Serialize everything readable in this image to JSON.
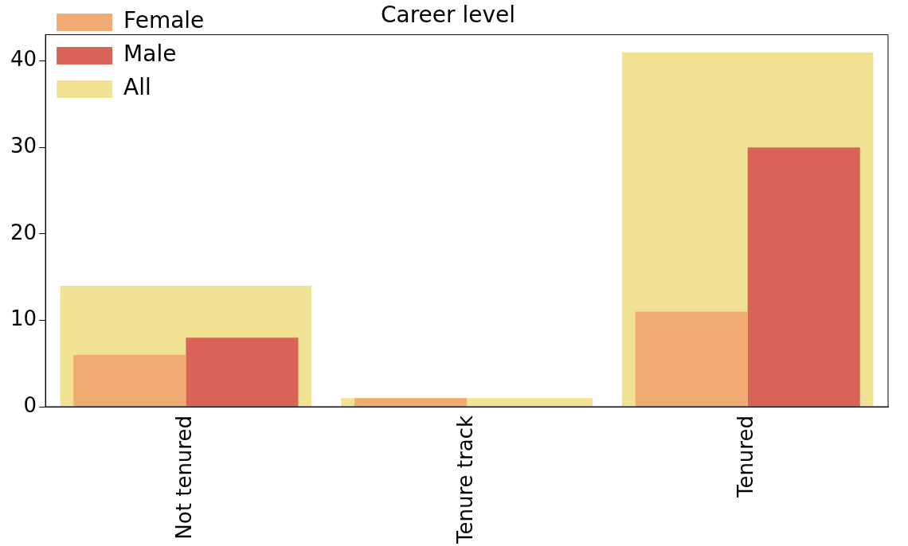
{
  "chart_data": {
    "type": "bar",
    "title": "Career level",
    "categories": [
      "Not tenured",
      "Tenure track",
      "Tenured"
    ],
    "series": [
      {
        "name": "All",
        "color": "#f1e193",
        "values": [
          14,
          1,
          41
        ]
      },
      {
        "name": "Female",
        "color": "#f0ab72",
        "values": [
          6,
          1,
          11
        ]
      },
      {
        "name": "Male",
        "color": "#da6358",
        "values": [
          8,
          0,
          30
        ]
      }
    ],
    "ylim": [
      0,
      43.05
    ],
    "yticks": [
      0,
      10,
      20,
      30,
      40
    ],
    "grid": false,
    "legend": "top left"
  }
}
